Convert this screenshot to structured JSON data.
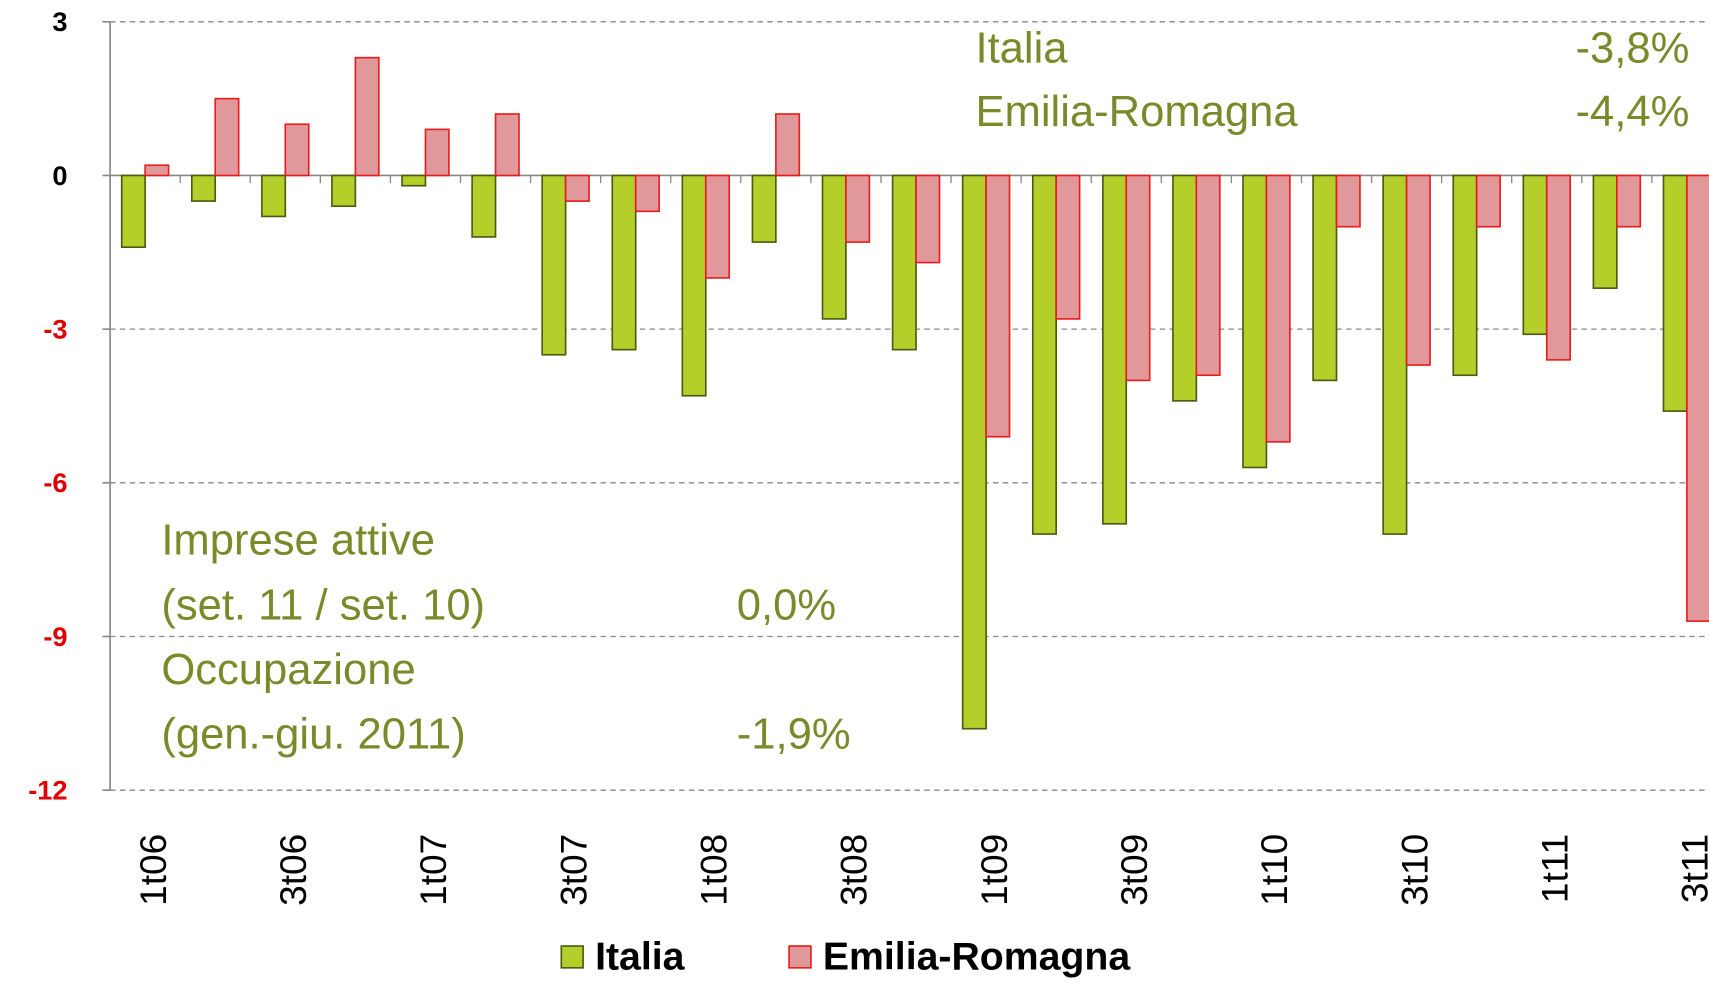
{
  "chart_data": {
    "type": "bar",
    "categories": [
      "1t06",
      null,
      "3t06",
      null,
      "1t07",
      null,
      "3t07",
      null,
      "1t08",
      null,
      "3t08",
      null,
      "1t09",
      null,
      "3t09",
      null,
      "1t10",
      null,
      "3t10",
      null,
      "1t11",
      null,
      "3t11"
    ],
    "series": [
      {
        "name": "Italia",
        "color": "#b5cf2a",
        "stroke": "#4a5a10",
        "values": [
          -1.4,
          -0.5,
          -0.8,
          -0.6,
          -0.2,
          -1.2,
          -3.5,
          -3.4,
          -4.3,
          -1.3,
          -2.8,
          -3.4,
          -10.8,
          -7.0,
          -6.8,
          -4.4,
          -5.7,
          -4.0,
          -7.0,
          -3.9,
          -3.1,
          -2.2,
          -4.6
        ]
      },
      {
        "name": "Emilia-Romagna",
        "color": "#e0989a",
        "stroke": "#e81c1c",
        "values": [
          0.2,
          1.5,
          1.0,
          2.3,
          0.9,
          1.2,
          -0.5,
          -0.7,
          -2.0,
          1.2,
          -1.3,
          -1.7,
          -5.1,
          -2.8,
          -4.0,
          -3.9,
          -5.2,
          -1.0,
          -3.7,
          -1.0,
          -3.6,
          -1.0,
          -8.7
        ]
      }
    ],
    "ylim": [
      -12,
      3
    ],
    "yticks": [
      3,
      0,
      -3,
      -6,
      -9,
      -12
    ],
    "grid": true,
    "tick_color": "#000000",
    "negative_tick_color": "#e00000",
    "annotations": [
      {
        "text": "Italia"
      },
      {
        "text": "-3,8%"
      },
      {
        "text": "Emilia-Romagna"
      },
      {
        "text": "-4,4%"
      },
      {
        "text": "Imprese attive"
      },
      {
        "text": "(set. 11 / set. 10)"
      },
      {
        "text": "0,0%"
      },
      {
        "text": "Occupazione"
      },
      {
        "text": "(gen.-giu. 2011)"
      },
      {
        "text": "-1,9%"
      }
    ],
    "annotation_color": "#7a8a2a",
    "legend": "bottom"
  }
}
